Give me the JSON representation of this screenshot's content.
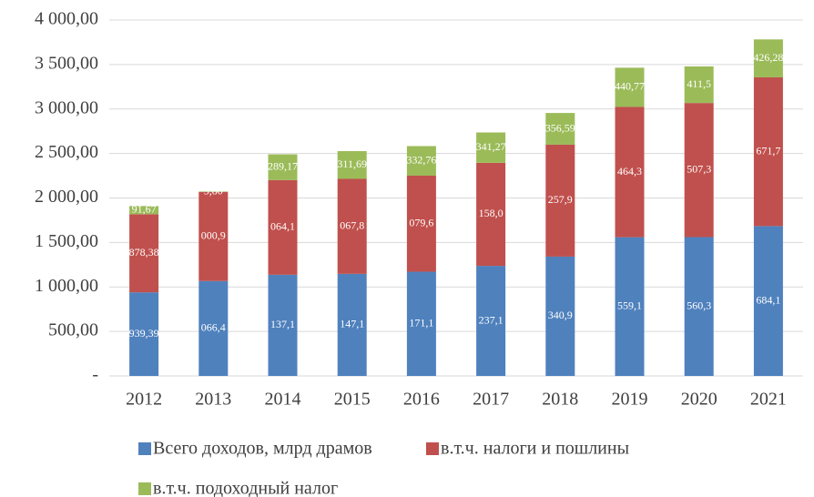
{
  "chart_data": {
    "type": "stacked_bar",
    "categories": [
      "2012",
      "2013",
      "2014",
      "2015",
      "2016",
      "2017",
      "2018",
      "2019",
      "2020",
      "2021"
    ],
    "series": [
      {
        "name": "Всего доходов, млрд драмов",
        "color": "#4f81bd",
        "values": [
          939.39,
          1066.4,
          1137.1,
          1147.1,
          1171.1,
          1237.1,
          1340.9,
          1559.1,
          1560.3,
          1684.1
        ],
        "value_labels": [
          "939,39",
          "066,4",
          "137,1",
          "147,1",
          "171,1",
          "237,1",
          "340,9",
          "559,1",
          "560,3",
          "684,1"
        ]
      },
      {
        "name": "в.т.ч. налоги и пошлины",
        "color": "#c0504d",
        "values": [
          878.38,
          1000.9,
          1064.1,
          1067.8,
          1079.6,
          1158.0,
          1257.9,
          1464.3,
          1507.3,
          1671.7
        ],
        "value_labels": [
          "878,38",
          "000,9",
          "064,1",
          "067,8",
          "079,6",
          "158,0",
          "257,9",
          "464,3",
          "507,3",
          "671,7"
        ]
      },
      {
        "name": "в.т.ч. подоходный налог",
        "color": "#9bbb59",
        "values": [
          91.67,
          5.8,
          289.17,
          311.69,
          332.76,
          341.27,
          356.59,
          440.77,
          411.5,
          426.28
        ],
        "value_labels": [
          "91,67",
          "5,80",
          "289,17",
          "311,69",
          "332,76",
          "341,27",
          "356,59",
          "440,77",
          "411,5",
          "426,28"
        ]
      }
    ],
    "ylim": [
      0,
      4000
    ],
    "yticks": [
      {
        "value": 0,
        "label": "-"
      },
      {
        "value": 500,
        "label": "500,00"
      },
      {
        "value": 1000,
        "label": "1 000,00"
      },
      {
        "value": 1500,
        "label": "1 500,00"
      },
      {
        "value": 2000,
        "label": "2 000,00"
      },
      {
        "value": 2500,
        "label": "2 500,00"
      },
      {
        "value": 3000,
        "label": "3 000,00"
      },
      {
        "value": 3500,
        "label": "3 500,00"
      },
      {
        "value": 4000,
        "label": "4 000,00"
      }
    ],
    "grid": true
  }
}
